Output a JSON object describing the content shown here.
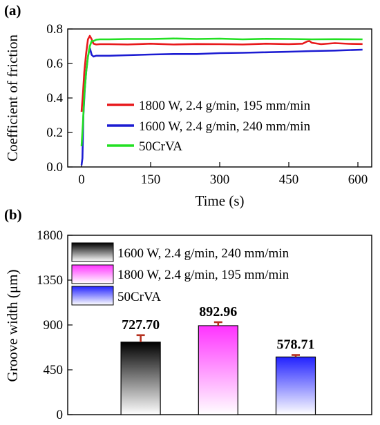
{
  "chart_data": [
    {
      "panel": "(a)",
      "type": "line",
      "xlabel": "Time (s)",
      "ylabel": "Coefficient of friction",
      "xlim": [
        -30,
        630
      ],
      "ylim": [
        0.0,
        0.8
      ],
      "xticks": [
        0,
        150,
        300,
        450,
        600
      ],
      "yticks": [
        0.0,
        0.2,
        0.4,
        0.6,
        0.8
      ],
      "xtick_labels": [
        "0",
        "150",
        "300",
        "450",
        "600"
      ],
      "ytick_labels": [
        "0.0",
        "0.2",
        "0.4",
        "0.6",
        "0.8"
      ],
      "grid": false,
      "legend_position": "center-right",
      "series": [
        {
          "name": "1800 W, 2.4 g/min, 195 mm/min",
          "color": "#e8191c",
          "x": [
            0,
            3,
            6,
            10,
            14,
            18,
            22,
            26,
            32,
            40,
            60,
            100,
            150,
            200,
            250,
            300,
            350,
            400,
            450,
            480,
            490,
            495,
            500,
            520,
            550,
            580,
            610
          ],
          "y": [
            0.32,
            0.42,
            0.55,
            0.66,
            0.74,
            0.76,
            0.74,
            0.715,
            0.71,
            0.712,
            0.712,
            0.71,
            0.715,
            0.71,
            0.713,
            0.712,
            0.71,
            0.715,
            0.712,
            0.715,
            0.728,
            0.73,
            0.72,
            0.712,
            0.718,
            0.714,
            0.713
          ]
        },
        {
          "name": "1600 W, 2.4 g/min, 240 mm/min",
          "color": "#1c1cd2",
          "x": [
            0,
            2,
            4,
            7,
            10,
            14,
            18,
            22,
            26,
            32,
            40,
            60,
            100,
            150,
            200,
            250,
            300,
            350,
            400,
            450,
            500,
            550,
            610
          ],
          "y": [
            0.01,
            0.05,
            0.3,
            0.45,
            0.55,
            0.64,
            0.69,
            0.65,
            0.64,
            0.645,
            0.645,
            0.645,
            0.648,
            0.652,
            0.655,
            0.655,
            0.66,
            0.662,
            0.665,
            0.668,
            0.672,
            0.675,
            0.68
          ]
        },
        {
          "name": "50CrVA",
          "color": "#22e022",
          "x": [
            0,
            3,
            6,
            10,
            14,
            18,
            22,
            26,
            32,
            40,
            60,
            100,
            150,
            200,
            250,
            300,
            350,
            400,
            450,
            500,
            550,
            610
          ],
          "y": [
            0.12,
            0.25,
            0.42,
            0.55,
            0.64,
            0.7,
            0.73,
            0.73,
            0.738,
            0.74,
            0.74,
            0.742,
            0.742,
            0.745,
            0.742,
            0.744,
            0.74,
            0.743,
            0.742,
            0.74,
            0.741,
            0.74
          ]
        }
      ]
    },
    {
      "panel": "(b)",
      "type": "bar",
      "ylabel": "Groove width (μm)",
      "ylim": [
        0,
        1800
      ],
      "yticks": [
        0,
        450,
        900,
        1350,
        1800
      ],
      "ytick_labels": [
        "0",
        "450",
        "900",
        "1350",
        "1800"
      ],
      "grid": false,
      "legend_position": "top-left",
      "series": [
        {
          "name": "1600 W, 2.4 g/min, 240 mm/min",
          "value": 727.7,
          "error": 70,
          "label": "727.70",
          "color": "#000000"
        },
        {
          "name": "1800 W, 2.4 g/min, 195 mm/min",
          "value": 892.96,
          "error": 35,
          "label": "892.96",
          "color": "#ff33ff"
        },
        {
          "name": "50CrVA",
          "value": 578.71,
          "error": 20,
          "label": "578.71",
          "color": "#2222ff"
        }
      ],
      "error_bar_color": "#b5301e"
    }
  ]
}
